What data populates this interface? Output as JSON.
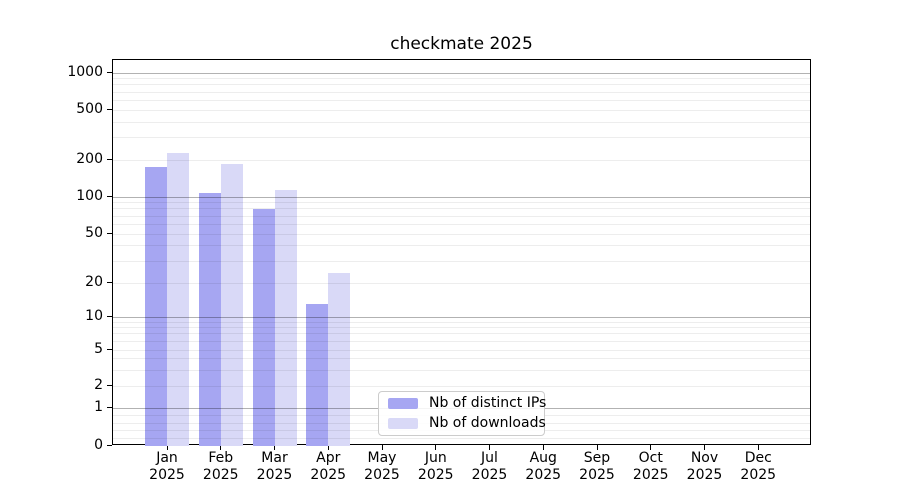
{
  "title": "checkmate 2025",
  "chart_data": {
    "type": "bar",
    "title": "checkmate 2025",
    "categories": [
      "Jan 2025",
      "Feb 2025",
      "Mar 2025",
      "Apr 2025",
      "May 2025",
      "Jun 2025",
      "Jul 2025",
      "Aug 2025",
      "Sep 2025",
      "Oct 2025",
      "Nov 2025",
      "Dec 2025"
    ],
    "series": [
      {
        "name": "Nb of distinct IPs",
        "color": "#a6a6f2",
        "values": [
          175,
          107,
          80,
          13,
          0,
          0,
          0,
          0,
          0,
          0,
          0,
          0
        ]
      },
      {
        "name": "Nb of downloads",
        "color": "#d9d9f7",
        "values": [
          228,
          184,
          114,
          24,
          0,
          0,
          0,
          0,
          0,
          0,
          0,
          0
        ]
      }
    ],
    "yscale": "symlog",
    "yticks": [
      0,
      1,
      2,
      5,
      10,
      20,
      50,
      100,
      200,
      500,
      1000
    ],
    "ylim": [
      0,
      1000
    ],
    "xlabel": "",
    "ylabel": "",
    "grid": "both, drawn above bars",
    "legend_position": "lower center-left inside plot"
  }
}
